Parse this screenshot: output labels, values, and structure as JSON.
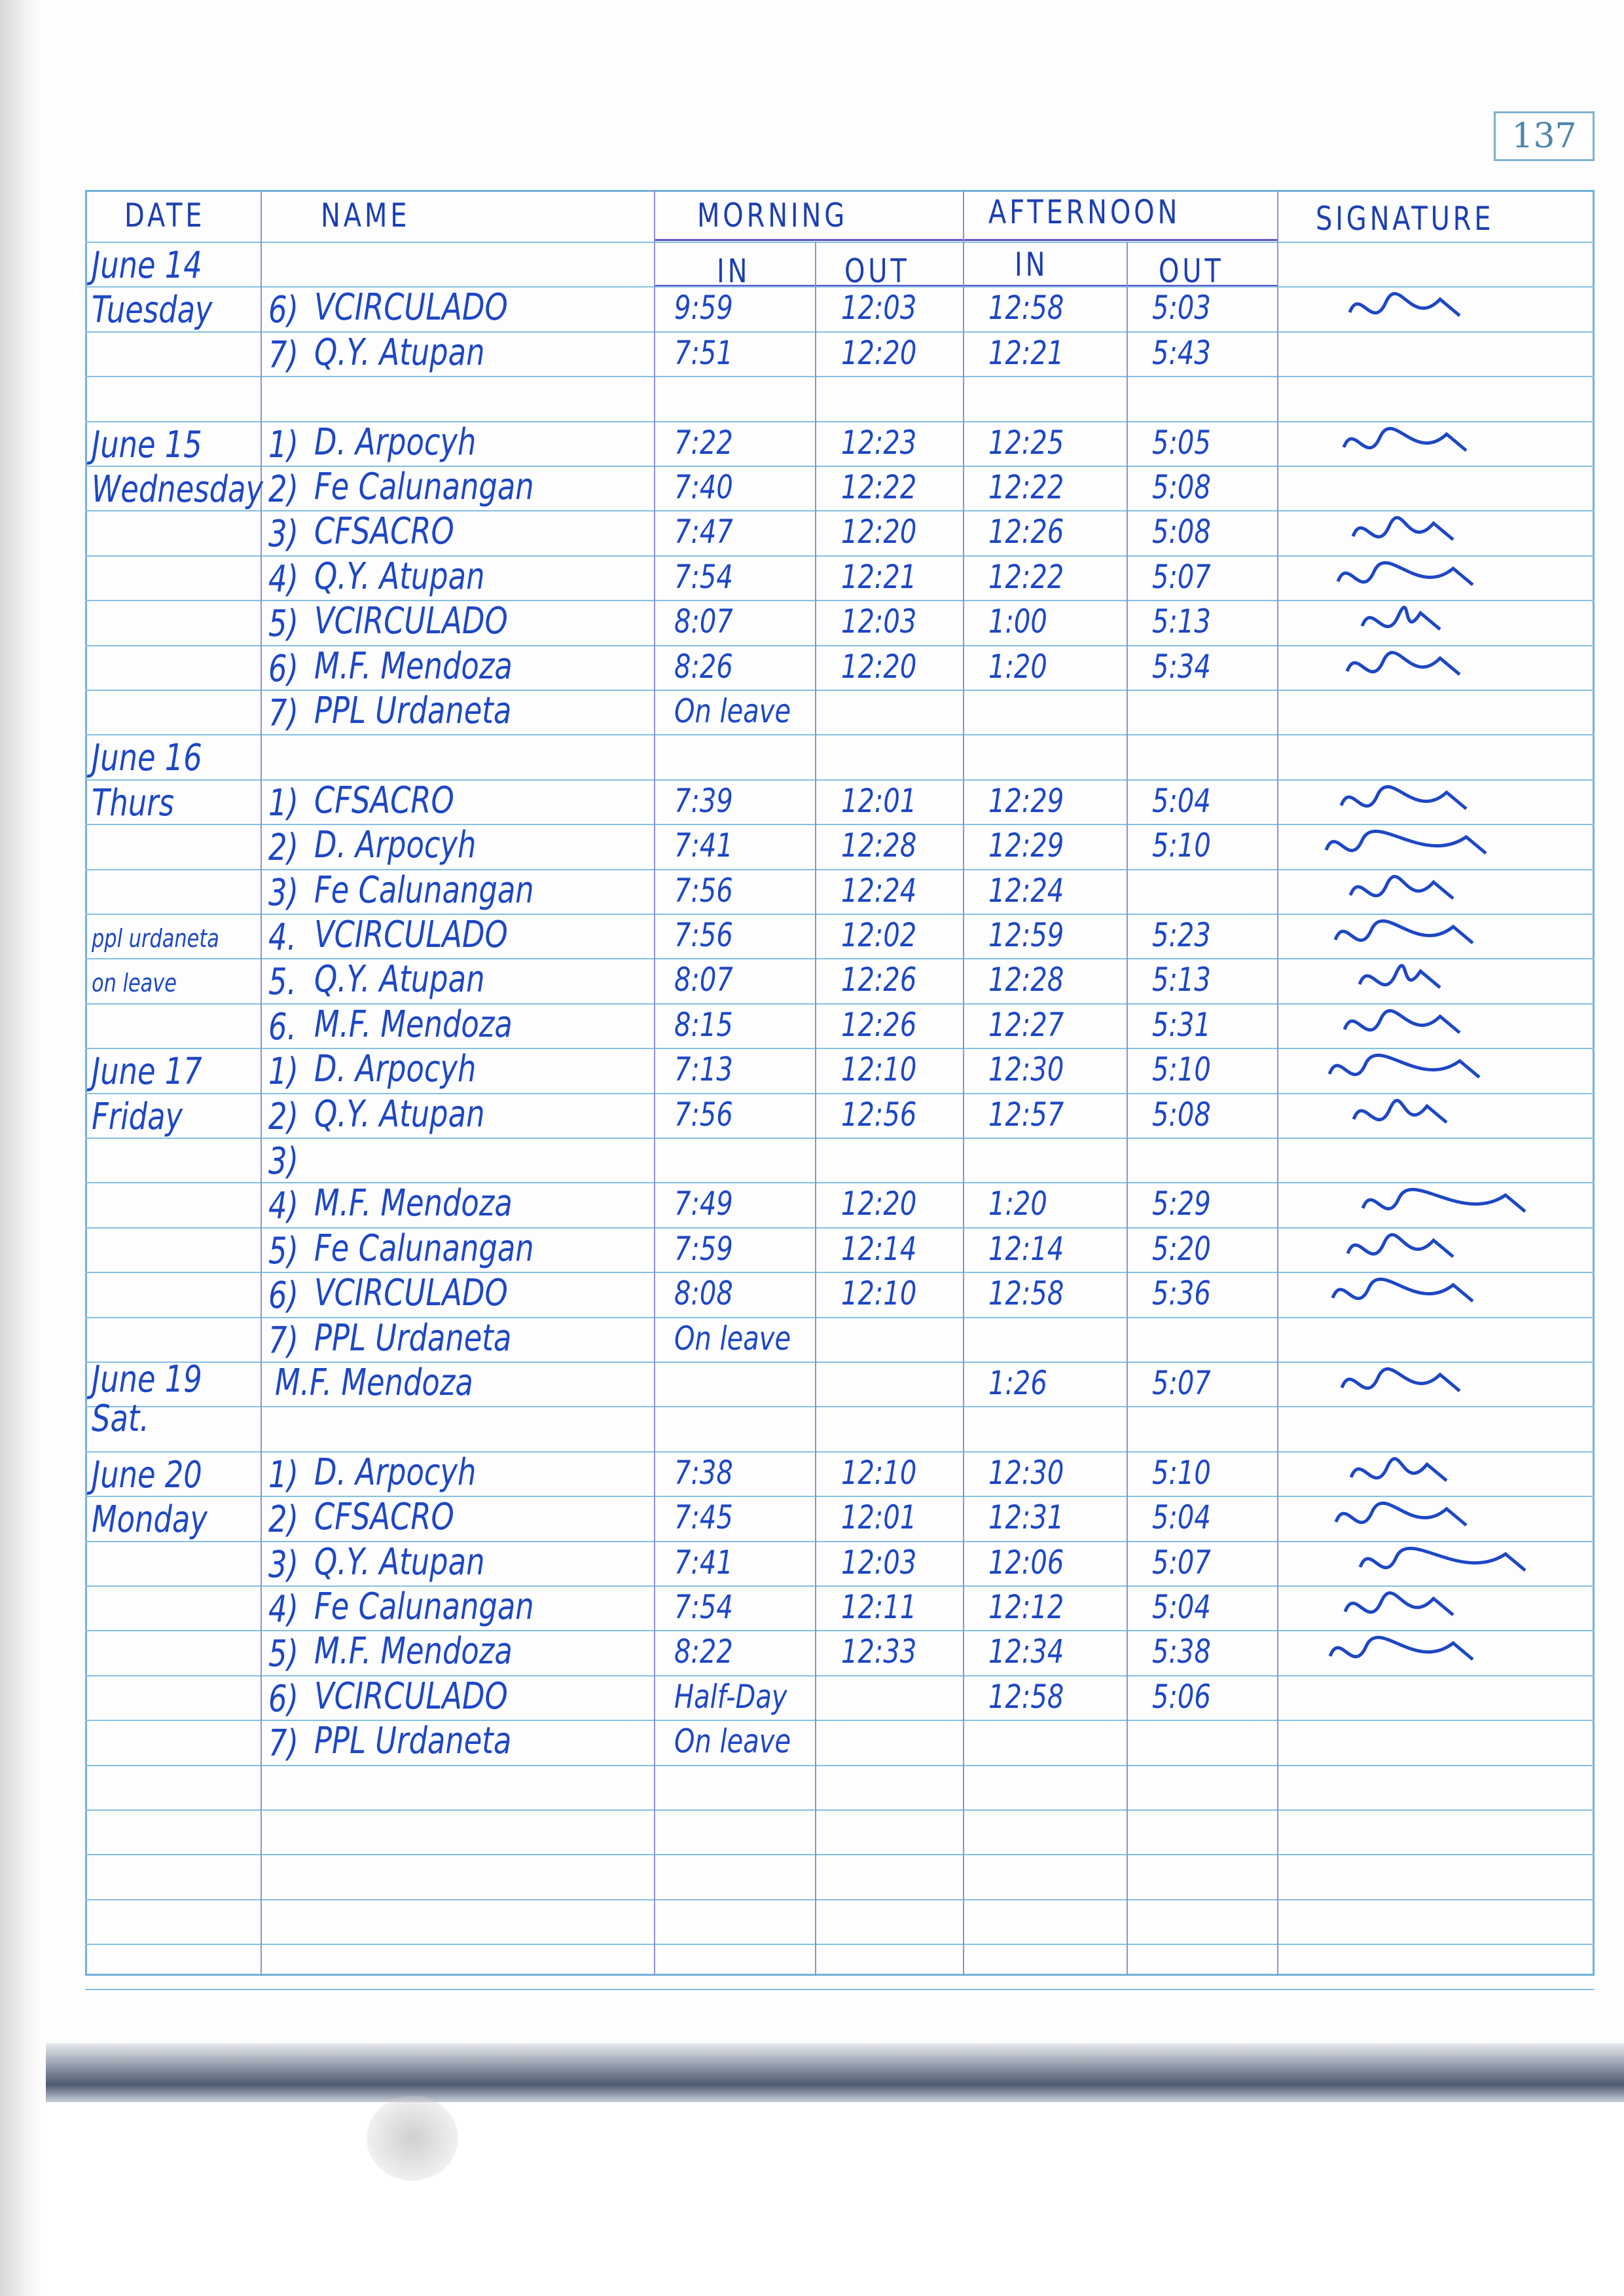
{
  "page_number": "137",
  "headers": {
    "date": "DATE",
    "name": "NAME",
    "morning": "MORNING",
    "afternoon": "AFTERNOON",
    "signature": "SIGNATURE",
    "in": "IN",
    "out": "OUT"
  },
  "ink_color": "#1d47c4",
  "lines": [
    {
      "date": "June 14",
      "sub": true
    },
    {
      "date": "Tuesday",
      "no": "6)",
      "name": "VCIRCULADO",
      "am_in": "9:59",
      "am_out": "12:03",
      "pm_in": "12:58",
      "pm_out": "5:03",
      "signed": true
    },
    {
      "no": "7)",
      "name": "Q.Y. Atupan",
      "am_in": "7:51",
      "am_out": "12:20",
      "pm_in": "12:21",
      "pm_out": "5:43"
    },
    {},
    {
      "date": "June 15",
      "no": "1)",
      "name": "D. Arpocyh",
      "am_in": "7:22",
      "am_out": "12:23",
      "pm_in": "12:25",
      "pm_out": "5:05",
      "signed": true
    },
    {
      "date": "Wednesday",
      "no": "2)",
      "name": "Fe Calunangan",
      "am_in": "7:40",
      "am_out": "12:22",
      "pm_in": "12:22",
      "pm_out": "5:08"
    },
    {
      "no": "3)",
      "name": "CFSACRO",
      "am_in": "7:47",
      "am_out": "12:20",
      "pm_in": "12:26",
      "pm_out": "5:08",
      "signed": true
    },
    {
      "no": "4)",
      "name": "Q.Y. Atupan",
      "am_in": "7:54",
      "am_out": "12:21",
      "pm_in": "12:22",
      "pm_out": "5:07",
      "signed": true
    },
    {
      "no": "5)",
      "name": "VCIRCULADO",
      "am_in": "8:07",
      "am_out": "12:03",
      "pm_in": "1:00",
      "pm_out": "5:13",
      "signed": true
    },
    {
      "no": "6)",
      "name": "M.F. Mendoza",
      "am_in": "8:26",
      "am_out": "12:20",
      "pm_in": "1:20",
      "pm_out": "5:34",
      "signed": true
    },
    {
      "no": "7)",
      "name": "PPL Urdaneta",
      "am_in": "On leave"
    },
    {
      "date": "June 16"
    },
    {
      "date": "Thurs",
      "no": "1)",
      "name": "CFSACRO",
      "am_in": "7:39",
      "am_out": "12:01",
      "pm_in": "12:29",
      "pm_out": "5:04",
      "signed": true
    },
    {
      "no": "2)",
      "name": "D. Arpocyh",
      "am_in": "7:41",
      "am_out": "12:28",
      "pm_in": "12:29",
      "pm_out": "5:10",
      "signed": true
    },
    {
      "no": "3)",
      "name": "Fe Calunangan",
      "am_in": "7:56",
      "am_out": "12:24",
      "pm_in": "12:24",
      "signed": true
    },
    {
      "date": "ppl urdaneta",
      "no": "4.",
      "name": "VCIRCULADO",
      "am_in": "7:56",
      "am_out": "12:02",
      "pm_in": "12:59",
      "pm_out": "5:23",
      "signed": true
    },
    {
      "date": "on leave",
      "no": "5.",
      "name": "Q.Y. Atupan",
      "am_in": "8:07",
      "am_out": "12:26",
      "pm_in": "12:28",
      "pm_out": "5:13",
      "signed": true
    },
    {
      "no": "6.",
      "name": "M.F. Mendoza",
      "am_in": "8:15",
      "am_out": "12:26",
      "pm_in": "12:27",
      "pm_out": "5:31",
      "signed": true
    },
    {
      "date": "June 17",
      "no": "1)",
      "name": "D. Arpocyh",
      "am_in": "7:13",
      "am_out": "12:10",
      "pm_in": "12:30",
      "pm_out": "5:10",
      "signed": true
    },
    {
      "date": "Friday",
      "no": "2)",
      "name": "Q.Y. Atupan",
      "am_in": "7:56",
      "am_out": "12:56",
      "pm_in": "12:57",
      "pm_out": "5:08",
      "signed": true
    },
    {
      "no": "3)"
    },
    {
      "no": "4)",
      "name": "M.F. Mendoza",
      "am_in": "7:49",
      "am_out": "12:20",
      "pm_in": "1:20",
      "pm_out": "5:29",
      "signed": true
    },
    {
      "no": "5)",
      "name": "Fe Calunangan",
      "am_in": "7:59",
      "am_out": "12:14",
      "pm_in": "12:14",
      "pm_out": "5:20",
      "signed": true
    },
    {
      "no": "6)",
      "name": "VCIRCULADO",
      "am_in": "8:08",
      "am_out": "12:10",
      "pm_in": "12:58",
      "pm_out": "5:36",
      "signed": true
    },
    {
      "no": "7)",
      "name": "PPL Urdaneta",
      "am_in": "On leave"
    },
    {
      "date": "June 19 Sat.",
      "name": "M.F. Mendoza",
      "pm_in": "1:26",
      "pm_out": "5:07",
      "signed": true
    },
    {},
    {
      "date": "June 20",
      "no": "1)",
      "name": "D. Arpocyh",
      "am_in": "7:38",
      "am_out": "12:10",
      "pm_in": "12:30",
      "pm_out": "5:10",
      "signed": true
    },
    {
      "date": "Monday",
      "no": "2)",
      "name": "CFSACRO",
      "am_in": "7:45",
      "am_out": "12:01",
      "pm_in": "12:31",
      "pm_out": "5:04",
      "signed": true
    },
    {
      "no": "3)",
      "name": "Q.Y. Atupan",
      "am_in": "7:41",
      "am_out": "12:03",
      "pm_in": "12:06",
      "pm_out": "5:07",
      "signed": true
    },
    {
      "no": "4)",
      "name": "Fe Calunangan",
      "am_in": "7:54",
      "am_out": "12:11",
      "pm_in": "12:12",
      "pm_out": "5:04",
      "signed": true
    },
    {
      "no": "5)",
      "name": "M.F. Mendoza",
      "am_in": "8:22",
      "am_out": "12:33",
      "pm_in": "12:34",
      "pm_out": "5:38",
      "signed": true
    },
    {
      "no": "6)",
      "name": "VCIRCULADO",
      "am_in": "Half-Day",
      "pm_in": "12:58",
      "pm_out": "5:06"
    },
    {
      "no": "7)",
      "name": "PPL Urdaneta",
      "am_in": "On leave"
    },
    {},
    {},
    {},
    {},
    {}
  ]
}
